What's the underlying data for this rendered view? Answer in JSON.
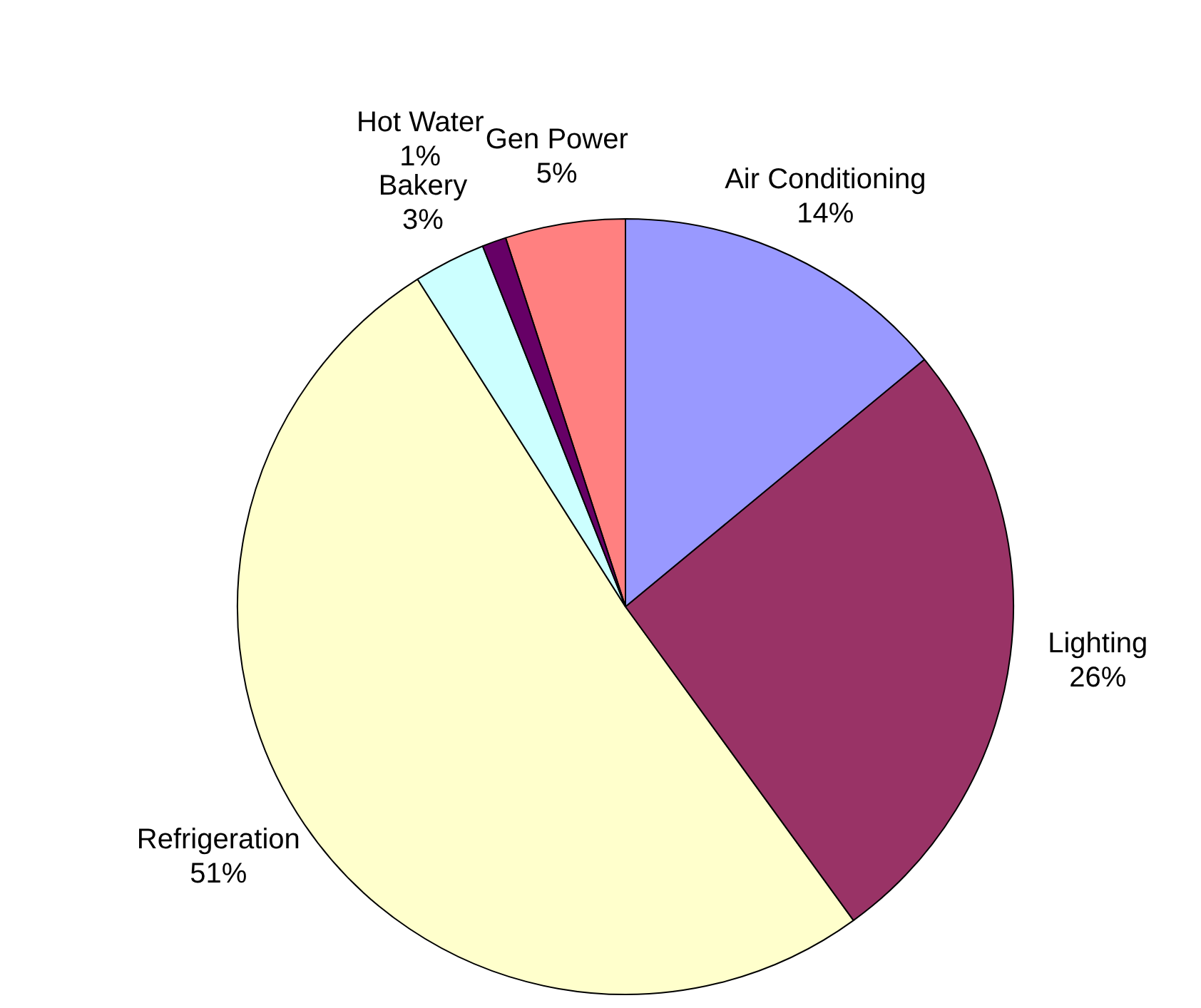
{
  "chart_data": {
    "type": "pie",
    "categories": [
      "Air Conditioning",
      "Lighting",
      "Refrigeration",
      "Bakery",
      "Hot Water",
      "Gen Power"
    ],
    "values": [
      14,
      26,
      51,
      3,
      1,
      5
    ],
    "value_labels": [
      "14%",
      "26%",
      "51%",
      "3%",
      "1%",
      "5%"
    ],
    "colors": [
      "#9999ff",
      "#993366",
      "#ffffcc",
      "#ccffff",
      "#660066",
      "#ff8080"
    ]
  }
}
